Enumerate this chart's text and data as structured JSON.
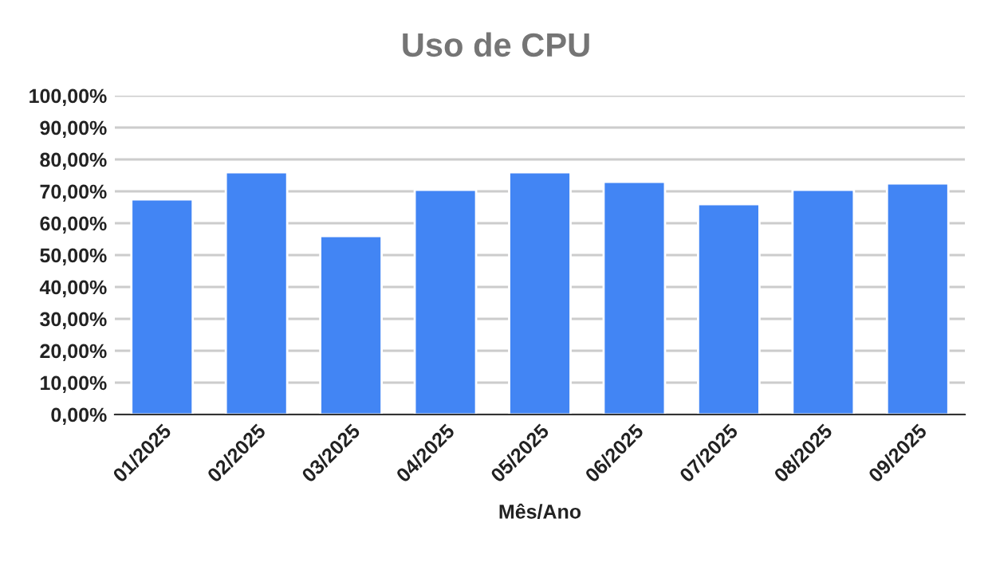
{
  "chart_data": {
    "type": "bar",
    "title": "Uso de CPU",
    "xlabel": "Mês/Ano",
    "categories": [
      "01/2025",
      "02/2025",
      "03/2025",
      "04/2025",
      "05/2025",
      "06/2025",
      "07/2025",
      "08/2025",
      "09/2025"
    ],
    "values": [
      67.5,
      76,
      56,
      70.5,
      76,
      73,
      66,
      70.5,
      72.5
    ],
    "color": "#4285f4",
    "ylim": [
      0,
      100
    ],
    "yticks": [
      {
        "value": 0,
        "label": "0,00%"
      },
      {
        "value": 10,
        "label": "10,00%"
      },
      {
        "value": 20,
        "label": "20,00%"
      },
      {
        "value": 30,
        "label": "30,00%"
      },
      {
        "value": 40,
        "label": "40,00%"
      },
      {
        "value": 50,
        "label": "50,00%"
      },
      {
        "value": 60,
        "label": "60,00%"
      },
      {
        "value": 70,
        "label": "70,00%"
      },
      {
        "value": 80,
        "label": "80,00%"
      },
      {
        "value": 90,
        "label": "90,00%"
      },
      {
        "value": 100,
        "label": "100,00%"
      }
    ],
    "grid": "y",
    "legend": false
  }
}
